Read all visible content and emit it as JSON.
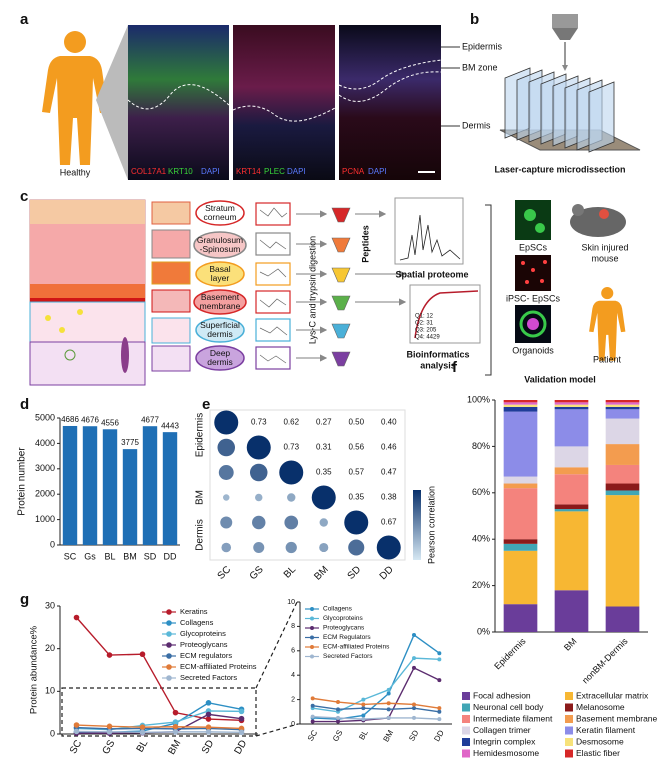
{
  "panel_labels": [
    "a",
    "b",
    "c",
    "d",
    "e",
    "f",
    "g"
  ],
  "panel_a": {
    "subject": "Healthy",
    "stain_1": [
      "COL17A1",
      "KRT10",
      "DAPI"
    ],
    "stain_2": [
      "KRT14",
      "PLEC",
      "DAPI"
    ],
    "stain_3": [
      "PCNA",
      "DAPI"
    ],
    "regions": [
      "Epidermis",
      "BM zone",
      "Dermis"
    ]
  },
  "panel_b": {
    "caption": "Laser-capture microdissection"
  },
  "panel_c": {
    "layers": [
      [
        "Stratum",
        "corneum"
      ],
      [
        "Granulosum",
        "-Spinosum"
      ],
      [
        "Basal",
        "layer"
      ],
      [
        "Basement",
        "membrane"
      ],
      [
        "Superficial",
        "dermis"
      ],
      [
        "Deep",
        "dermis"
      ]
    ],
    "digestion": "Lys-C and trypsin digestion",
    "peptides": "Peptides",
    "spatial_proteome": "Spatial proteome",
    "quartiles": [
      "Q1: 12",
      "Q2: 31",
      "Q3: 205",
      "Q4: 4429"
    ],
    "bioinformatics": [
      "Bioinformatics",
      "analysis"
    ],
    "models": [
      "EpSCs",
      "iPSC- EpSCs",
      "Organoids"
    ],
    "mouse": [
      "Skin injured",
      "mouse"
    ],
    "patient": "Patient",
    "validation": "Validation model"
  },
  "chart_data": [
    {
      "type": "bar",
      "y_label": "Protein number",
      "categories": [
        "SC",
        "Gs",
        "BL",
        "BM",
        "SD",
        "DD"
      ],
      "values": [
        4686,
        4676,
        4556,
        3775,
        4677,
        4443
      ],
      "color": "#1f6fb5",
      "ylim": [
        0,
        5000
      ],
      "yticks": [
        0,
        1000,
        2000,
        3000,
        4000,
        5000
      ]
    },
    {
      "type": "correlation",
      "categories": [
        "SC",
        "GS",
        "BL",
        "BM",
        "SD",
        "DD"
      ],
      "groups": [
        "Epidermis",
        "BM",
        "Dermis"
      ],
      "matrix": [
        [
          1,
          0.73,
          0.62,
          0.27,
          0.5,
          0.4
        ],
        [
          0.73,
          1,
          0.73,
          0.31,
          0.56,
          0.46
        ],
        [
          0.62,
          0.73,
          1,
          0.35,
          0.57,
          0.47
        ],
        [
          0.27,
          0.31,
          0.35,
          1,
          0.35,
          0.38
        ],
        [
          0.5,
          0.56,
          0.57,
          0.35,
          1,
          0.67
        ],
        [
          0.4,
          0.46,
          0.47,
          0.38,
          0.67,
          1
        ]
      ],
      "value_labels": [
        [
          null,
          "0.73",
          "0.62",
          "0.27",
          "0.50",
          "0.40"
        ],
        [
          null,
          null,
          "0.73",
          "0.31",
          "0.56",
          "0.46"
        ],
        [
          null,
          null,
          null,
          "0.35",
          "0.57",
          "0.47"
        ],
        [
          null,
          null,
          null,
          null,
          "0.35",
          "0.38"
        ],
        [
          null,
          null,
          null,
          null,
          null,
          "0.67"
        ],
        [
          null,
          null,
          null,
          null,
          null,
          null
        ]
      ],
      "colorbar_label": "Pearson correlation"
    },
    {
      "type": "stacked_bar",
      "categories": [
        "Epidermis",
        "BM",
        "nonBM-Dermis"
      ],
      "ylim": [
        0,
        100
      ],
      "yticks": [
        {
          "value": 0,
          "label": "0%"
        },
        {
          "value": 20,
          "label": "20%"
        },
        {
          "value": 40,
          "label": "40%"
        },
        {
          "value": 60,
          "label": "60%"
        },
        {
          "value": 80,
          "label": "80%"
        },
        {
          "value": 100,
          "label": "100%"
        }
      ],
      "series": [
        {
          "name": "Focal adhesion",
          "color": "#6a3d9a",
          "values": [
            12,
            18,
            11
          ]
        },
        {
          "name": "Extracellular matrix",
          "color": "#f7b733",
          "values": [
            23,
            34,
            48
          ]
        },
        {
          "name": "Neuronal cell body",
          "color": "#41a6b5",
          "values": [
            3,
            1,
            2
          ]
        },
        {
          "name": "Melanosome",
          "color": "#8b1a1a",
          "values": [
            2,
            2,
            3
          ]
        },
        {
          "name": "Intermediate filament",
          "color": "#f4837d",
          "values": [
            22,
            13,
            8
          ]
        },
        {
          "name": "Basement membrane",
          "color": "#f39c4f",
          "values": [
            2,
            3,
            9
          ]
        },
        {
          "name": "Collagen trimer",
          "color": "#dcd6e6",
          "values": [
            3,
            9,
            11
          ]
        },
        {
          "name": "Keratin filament",
          "color": "#8c8ce8",
          "values": [
            28,
            16,
            4
          ]
        },
        {
          "name": "Integrin complex",
          "color": "#1f3d99",
          "values": [
            2,
            1,
            1
          ]
        },
        {
          "name": "Desmosome",
          "color": "#f7e27a",
          "values": [
            1,
            1,
            1
          ]
        },
        {
          "name": "Hemidesmosome",
          "color": "#e066c8",
          "values": [
            1,
            1,
            1
          ]
        },
        {
          "name": "Elastic fiber",
          "color": "#d62728",
          "values": [
            1,
            1,
            1
          ]
        }
      ]
    },
    {
      "type": "line",
      "y_label": "Protein abundance%",
      "categories": [
        "SC",
        "GS",
        "BL",
        "BM",
        "SD",
        "DD"
      ],
      "ylim": [
        0,
        30
      ],
      "yticks": [
        0,
        10,
        20,
        30
      ],
      "series": [
        {
          "name": "Keratins",
          "color": "#b71c2b",
          "values": [
            27.3,
            18.5,
            18.7,
            5.0,
            3.5,
            3.2
          ]
        },
        {
          "name": "Collagens",
          "color": "#2d8fc4",
          "values": [
            0.5,
            0.4,
            0.7,
            2.5,
            7.3,
            5.8
          ]
        },
        {
          "name": "Glycoproteins",
          "color": "#5ab8d8",
          "values": [
            1.3,
            1.0,
            2.0,
            2.8,
            5.4,
            5.3
          ]
        },
        {
          "name": "Proteoglycans",
          "color": "#5b2c6f",
          "values": [
            0.2,
            0.2,
            0.3,
            0.5,
            4.6,
            3.6
          ]
        },
        {
          "name": "ECM regulators",
          "color": "#3a6ea5",
          "values": [
            1.5,
            1.2,
            1.3,
            1.2,
            1.3,
            1.0
          ]
        },
        {
          "name": "ECM-affiliated Proteins",
          "color": "#e07b39",
          "values": [
            2.1,
            1.8,
            1.6,
            1.7,
            1.6,
            1.3
          ]
        },
        {
          "name": "Secreted Factors",
          "color": "#9fb6d0",
          "values": [
            0.6,
            0.5,
            0.4,
            0.5,
            0.5,
            0.4
          ]
        }
      ]
    },
    {
      "type": "line",
      "categories": [
        "SC",
        "GS",
        "BL",
        "BM",
        "SD",
        "DD"
      ],
      "ylim": [
        0,
        10
      ],
      "yticks": [
        0,
        2,
        4,
        6,
        8,
        10
      ],
      "series": [
        {
          "name": "Collagens",
          "color": "#2d8fc4",
          "values": [
            0.5,
            0.4,
            0.7,
            2.5,
            7.3,
            5.8
          ]
        },
        {
          "name": "Glycoproteins",
          "color": "#5ab8d8",
          "values": [
            1.3,
            1.0,
            2.0,
            2.8,
            5.4,
            5.3
          ]
        },
        {
          "name": "Proteoglycans",
          "color": "#5b2c6f",
          "values": [
            0.2,
            0.2,
            0.3,
            0.5,
            4.6,
            3.6
          ]
        },
        {
          "name": "ECM Regulators",
          "color": "#3a6ea5",
          "values": [
            1.5,
            1.2,
            1.3,
            1.2,
            1.3,
            1.0
          ]
        },
        {
          "name": "ECM-affiliated Proteins",
          "color": "#e07b39",
          "values": [
            2.1,
            1.8,
            1.6,
            1.7,
            1.6,
            1.3
          ]
        },
        {
          "name": "Secreted Factors",
          "color": "#9fb6d0",
          "values": [
            0.6,
            0.5,
            0.4,
            0.5,
            0.5,
            0.4
          ]
        }
      ]
    }
  ]
}
